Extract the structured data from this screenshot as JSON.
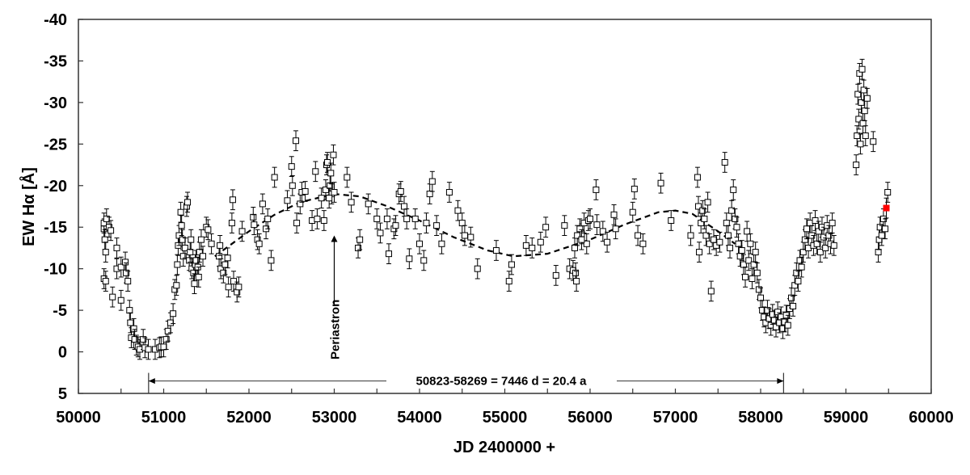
{
  "chart_data": {
    "type": "scatter",
    "title": "",
    "xlabel": "JD 2400000 +",
    "ylabel": "EW Hα [Å]",
    "xlim": [
      50000,
      60000
    ],
    "ylim": [
      5,
      -40
    ],
    "y_inverted": true,
    "grid": false,
    "x_ticks": [
      "50000",
      "51000",
      "52000",
      "53000",
      "54000",
      "55000",
      "56000",
      "57000",
      "58000",
      "59000",
      "60000"
    ],
    "y_ticks": [
      "-40",
      "-35",
      "-30",
      "-25",
      "-20",
      "-15",
      "-10",
      "-5",
      "0",
      "5"
    ],
    "error_bar": 1.2,
    "colors": {
      "points": "#000000",
      "latest": "#ff0000",
      "fit": "#000000"
    },
    "series": [
      {
        "name": "observations",
        "marker": "open-square",
        "points": [
          [
            50300,
            -14.8
          ],
          [
            50300,
            -15.5
          ],
          [
            50310,
            -13.5
          ],
          [
            50320,
            -12
          ],
          [
            50300,
            -8.8
          ],
          [
            50320,
            -8.5
          ],
          [
            50330,
            -16
          ],
          [
            50360,
            -15
          ],
          [
            50380,
            -14.6
          ],
          [
            50400,
            -6.6
          ],
          [
            50450,
            -12.5
          ],
          [
            50450,
            -10
          ],
          [
            50500,
            -6.2
          ],
          [
            50500,
            -10.2
          ],
          [
            50550,
            -10.8
          ],
          [
            50560,
            -9.5
          ],
          [
            50580,
            -8.5
          ],
          [
            50600,
            -5
          ],
          [
            50610,
            -3.5
          ],
          [
            50620,
            -1.7
          ],
          [
            50650,
            -2.8
          ],
          [
            50660,
            -1.5
          ],
          [
            50680,
            -0.8
          ],
          [
            50700,
            -0.6
          ],
          [
            50720,
            -0.3
          ],
          [
            50760,
            -1.5
          ],
          [
            50780,
            -0.5
          ],
          [
            50820,
            -0.3
          ],
          [
            50900,
            -0.3
          ],
          [
            50950,
            -0.5
          ],
          [
            50970,
            -0.6
          ],
          [
            51000,
            -0.6
          ],
          [
            51030,
            -1.5
          ],
          [
            51050,
            -2.5
          ],
          [
            51080,
            -3.5
          ],
          [
            51110,
            -4.6
          ],
          [
            51130,
            -7.5
          ],
          [
            51150,
            -8
          ],
          [
            51160,
            -10.5
          ],
          [
            51170,
            -12.8
          ],
          [
            51180,
            -14
          ],
          [
            51200,
            -16.8
          ],
          [
            51210,
            -15.2
          ],
          [
            51220,
            -13.5
          ],
          [
            51230,
            -11.5
          ],
          [
            51250,
            -12.5
          ],
          [
            51270,
            -17.5
          ],
          [
            51280,
            -18
          ],
          [
            51300,
            -11
          ],
          [
            51310,
            -12
          ],
          [
            51320,
            -13.5
          ],
          [
            51330,
            -10
          ],
          [
            51350,
            -9.5
          ],
          [
            51360,
            -8.2
          ],
          [
            51370,
            -10.5
          ],
          [
            51380,
            -11
          ],
          [
            51400,
            -10.2
          ],
          [
            51410,
            -9
          ],
          [
            51420,
            -12
          ],
          [
            51440,
            -13.5
          ],
          [
            51460,
            -11.5
          ],
          [
            51500,
            -15
          ],
          [
            51520,
            -14.7
          ],
          [
            51560,
            -13
          ],
          [
            51650,
            -11.5
          ],
          [
            51660,
            -12.8
          ],
          [
            51670,
            -10
          ],
          [
            51700,
            -9.5
          ],
          [
            51720,
            -10.5
          ],
          [
            51750,
            -11.3
          ],
          [
            51760,
            -7.8
          ],
          [
            51800,
            -15.5
          ],
          [
            51810,
            -18.3
          ],
          [
            51820,
            -8.5
          ],
          [
            51860,
            -7.2
          ],
          [
            51880,
            -7.8
          ],
          [
            51920,
            -14.5
          ],
          [
            52050,
            -16.2
          ],
          [
            52060,
            -15.3
          ],
          [
            52100,
            -13.5
          ],
          [
            52120,
            -13
          ],
          [
            52160,
            -17.8
          ],
          [
            52200,
            -14.8
          ],
          [
            52220,
            -16
          ],
          [
            52260,
            -11
          ],
          [
            52300,
            -21
          ],
          [
            52450,
            -18.2
          ],
          [
            52500,
            -22.3
          ],
          [
            52510,
            -20
          ],
          [
            52550,
            -25.4
          ],
          [
            52560,
            -15.5
          ],
          [
            52600,
            -17.8
          ],
          [
            52620,
            -19.2
          ],
          [
            52660,
            -19.3
          ],
          [
            52780,
            -21.7
          ],
          [
            52740,
            -15.8
          ],
          [
            52800,
            -16
          ],
          [
            52850,
            -18.5
          ],
          [
            52900,
            -19.5
          ],
          [
            52910,
            -22.5
          ],
          [
            52920,
            -22.8
          ],
          [
            52880,
            -15.8
          ],
          [
            52950,
            -20
          ],
          [
            52960,
            -21.5
          ],
          [
            52990,
            -23.7
          ],
          [
            52970,
            -19
          ],
          [
            52940,
            -18.5
          ],
          [
            53000,
            -19.2
          ],
          [
            53150,
            -21
          ],
          [
            53200,
            -18
          ],
          [
            53280,
            -12.5
          ],
          [
            53300,
            -13.5
          ],
          [
            53400,
            -17.8
          ],
          [
            53500,
            -16
          ],
          [
            53540,
            -14.3
          ],
          [
            53620,
            -16
          ],
          [
            53640,
            -11.8
          ],
          [
            53700,
            -14.8
          ],
          [
            53720,
            -15.2
          ],
          [
            53760,
            -19
          ],
          [
            53780,
            -19.3
          ],
          [
            53820,
            -17.5
          ],
          [
            53850,
            -16
          ],
          [
            53880,
            -11.2
          ],
          [
            53950,
            -16
          ],
          [
            54000,
            -13
          ],
          [
            54050,
            -11
          ],
          [
            54080,
            -15.5
          ],
          [
            54120,
            -19
          ],
          [
            54150,
            -20.5
          ],
          [
            54200,
            -15.2
          ],
          [
            54260,
            -13
          ],
          [
            54350,
            -19.2
          ],
          [
            54450,
            -17
          ],
          [
            54500,
            -15.5
          ],
          [
            54530,
            -14
          ],
          [
            54600,
            -13.8
          ],
          [
            54680,
            -10
          ],
          [
            54900,
            -12.2
          ],
          [
            55080,
            -10.5
          ],
          [
            55250,
            -12.8
          ],
          [
            55320,
            -12.5
          ],
          [
            55050,
            -8.5
          ],
          [
            55480,
            -15
          ],
          [
            55420,
            -13.2
          ],
          [
            55600,
            -9.2
          ],
          [
            55700,
            -15.2
          ],
          [
            55900,
            -14.2
          ],
          [
            55760,
            -10
          ],
          [
            55800,
            -9.8
          ],
          [
            55830,
            -9.5
          ],
          [
            55840,
            -8.5
          ],
          [
            55820,
            -12.5
          ],
          [
            55850,
            -14
          ],
          [
            55880,
            -14.8
          ],
          [
            55930,
            -15.5
          ],
          [
            55960,
            -13
          ],
          [
            55900,
            -13.5
          ],
          [
            55980,
            -15.8
          ],
          [
            56000,
            -16
          ],
          [
            56070,
            -19.5
          ],
          [
            56080,
            -15.3
          ],
          [
            56150,
            -14.5
          ],
          [
            56200,
            -13.2
          ],
          [
            56280,
            -16.5
          ],
          [
            56300,
            -14.8
          ],
          [
            56500,
            -16.8
          ],
          [
            56520,
            -19.6
          ],
          [
            56560,
            -14
          ],
          [
            56620,
            -13
          ],
          [
            56830,
            -20.3
          ],
          [
            56950,
            -15.8
          ],
          [
            57180,
            -14
          ],
          [
            57260,
            -21
          ],
          [
            57270,
            -17.5
          ],
          [
            57280,
            -12
          ],
          [
            57300,
            -15.5
          ],
          [
            57320,
            -17
          ],
          [
            57340,
            -16
          ],
          [
            57360,
            -14
          ],
          [
            57380,
            -18
          ],
          [
            57400,
            -13
          ],
          [
            57420,
            -7.3
          ],
          [
            57450,
            -13.5
          ],
          [
            57480,
            -12.8
          ],
          [
            57520,
            -13.2
          ],
          [
            57580,
            -22.8
          ],
          [
            57600,
            -15.5
          ],
          [
            57620,
            -14
          ],
          [
            57640,
            -12.5
          ],
          [
            57660,
            -17
          ],
          [
            57680,
            -19.5
          ],
          [
            57700,
            -16
          ],
          [
            57720,
            -15
          ],
          [
            57740,
            -13
          ],
          [
            57760,
            -11.5
          ],
          [
            57780,
            -12.2
          ],
          [
            57800,
            -10.5
          ],
          [
            57820,
            -9
          ],
          [
            57840,
            -14.5
          ],
          [
            57860,
            -11
          ],
          [
            57880,
            -13
          ],
          [
            57900,
            -8.8
          ],
          [
            57920,
            -10.5
          ],
          [
            57940,
            -12
          ],
          [
            57960,
            -9.5
          ],
          [
            57980,
            -7.5
          ],
          [
            58000,
            -6.5
          ],
          [
            58020,
            -5
          ],
          [
            58040,
            -4.2
          ],
          [
            58060,
            -3.5
          ],
          [
            58080,
            -5
          ],
          [
            58100,
            -4
          ],
          [
            58120,
            -3.2
          ],
          [
            58140,
            -4.5
          ],
          [
            58160,
            -3.8
          ],
          [
            58180,
            -3
          ],
          [
            58200,
            -4.8
          ],
          [
            58220,
            -3.5
          ],
          [
            58240,
            -4.2
          ],
          [
            58260,
            -2.8
          ],
          [
            58280,
            -3.6
          ],
          [
            58300,
            -4.4
          ],
          [
            58320,
            -3.2
          ],
          [
            58340,
            -5.2
          ],
          [
            58360,
            -6.5
          ],
          [
            58380,
            -5.5
          ],
          [
            58400,
            -8
          ],
          [
            58420,
            -9.5
          ],
          [
            58440,
            -8.5
          ],
          [
            58460,
            -11
          ],
          [
            58480,
            -10.2
          ],
          [
            58500,
            -12
          ],
          [
            58520,
            -13.5
          ],
          [
            58540,
            -14.8
          ],
          [
            58560,
            -12.5
          ],
          [
            58580,
            -15.5
          ],
          [
            58600,
            -14
          ],
          [
            58620,
            -12.8
          ],
          [
            58640,
            -15.8
          ],
          [
            58660,
            -13
          ],
          [
            58680,
            -14.5
          ],
          [
            58700,
            -12
          ],
          [
            58720,
            -15
          ],
          [
            58740,
            -13.8
          ],
          [
            58760,
            -12.5
          ],
          [
            58780,
            -15.2
          ],
          [
            58800,
            -14
          ],
          [
            58820,
            -13
          ],
          [
            58840,
            -15.5
          ],
          [
            58860,
            -12.8
          ],
          [
            59120,
            -22.5
          ],
          [
            59130,
            -26
          ],
          [
            59140,
            -31
          ],
          [
            59150,
            -28
          ],
          [
            59160,
            -33.5
          ],
          [
            59170,
            -25
          ],
          [
            59180,
            -30
          ],
          [
            59190,
            -34
          ],
          [
            59200,
            -27.5
          ],
          [
            59210,
            -31.5
          ],
          [
            59220,
            -29
          ],
          [
            59230,
            -26
          ],
          [
            59250,
            -30.5
          ],
          [
            59320,
            -25.3
          ],
          [
            59380,
            -12
          ],
          [
            59390,
            -13.5
          ],
          [
            59400,
            -15
          ],
          [
            59420,
            -14
          ],
          [
            59440,
            -16
          ],
          [
            59460,
            -14.8
          ],
          [
            59490,
            -19.2
          ]
        ]
      },
      {
        "name": "latest",
        "marker": "filled-square",
        "points": [
          [
            59474,
            -17.3
          ]
        ]
      },
      {
        "name": "fit",
        "type": "line",
        "style": "dashed",
        "points": [
          [
            51600,
            -11.5
          ],
          [
            51800,
            -13
          ],
          [
            52000,
            -14.5
          ],
          [
            52300,
            -16.5
          ],
          [
            52600,
            -18
          ],
          [
            53000,
            -19
          ],
          [
            53300,
            -18.7
          ],
          [
            53600,
            -17.6
          ],
          [
            54000,
            -15.8
          ],
          [
            54400,
            -13.8
          ],
          [
            54800,
            -12.2
          ],
          [
            55100,
            -11.5
          ],
          [
            55500,
            -11.8
          ],
          [
            56000,
            -13.5
          ],
          [
            56400,
            -15.3
          ],
          [
            56800,
            -16.8
          ],
          [
            57000,
            -17
          ],
          [
            57200,
            -16.6
          ],
          [
            57500,
            -14.5
          ],
          [
            57700,
            -13
          ]
        ]
      }
    ],
    "annotations": {
      "periastron": {
        "text": "Periastron",
        "x": 53000,
        "arrow_from": -5.5,
        "arrow_to": -14
      },
      "period": {
        "text": "50823-58269 = 7446 d = 20.4 a",
        "x_start": 50823,
        "x_end": 58269,
        "y": 3.5
      }
    }
  }
}
